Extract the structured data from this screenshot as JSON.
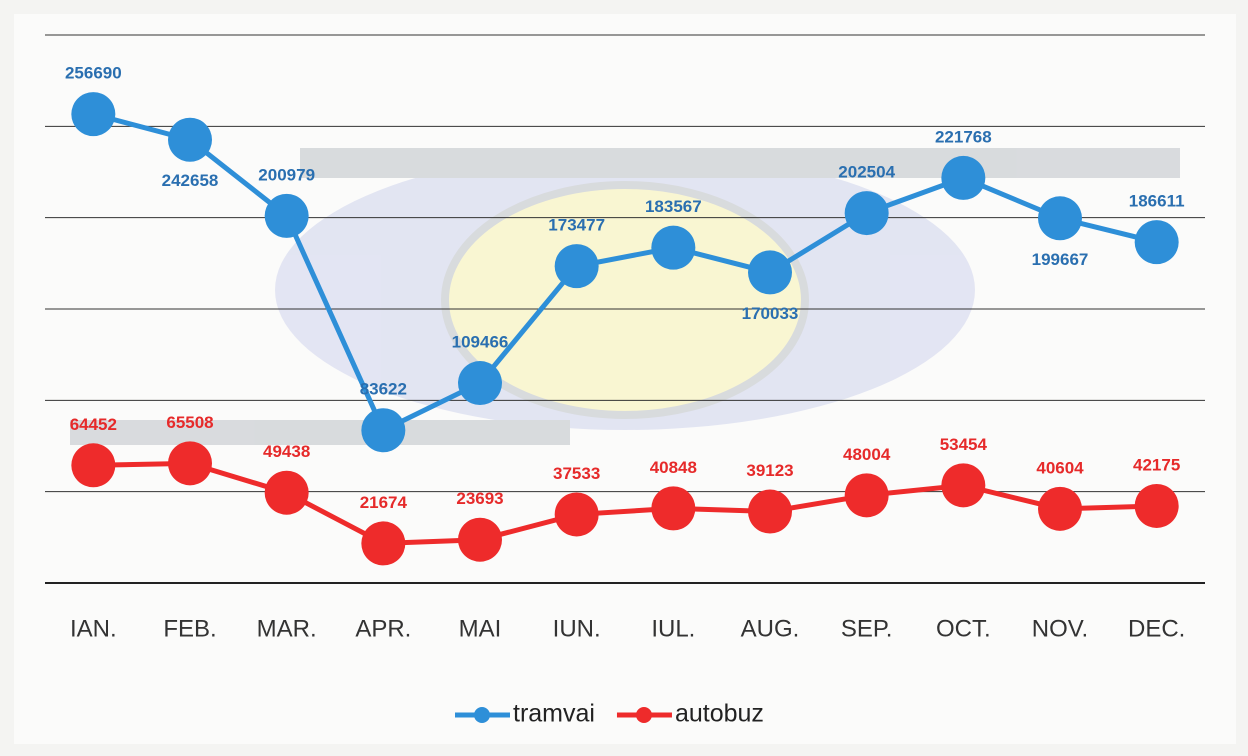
{
  "chart_data": {
    "type": "line",
    "categories": [
      "IAN.",
      "FEB.",
      "MAR.",
      "APR.",
      "MAI",
      "IUN.",
      "IUL.",
      "AUG.",
      "SEP.",
      "OCT.",
      "NOV.",
      "DEC."
    ],
    "series": [
      {
        "name": "tramvai",
        "color": "#2e8fd8",
        "values": [
          256690,
          242658,
          200979,
          83622,
          109466,
          173477,
          183567,
          170033,
          202504,
          221768,
          199667,
          186611
        ]
      },
      {
        "name": "autobuz",
        "color": "#ee2b2b",
        "values": [
          64452,
          65508,
          49438,
          21674,
          23693,
          37533,
          40848,
          39123,
          48004,
          53454,
          40604,
          42175
        ]
      }
    ],
    "ylim": [
      0,
      300000
    ],
    "yticks": [
      0,
      50000,
      100000,
      150000,
      200000,
      250000,
      300000
    ],
    "grid": true,
    "legend": "bottom"
  }
}
